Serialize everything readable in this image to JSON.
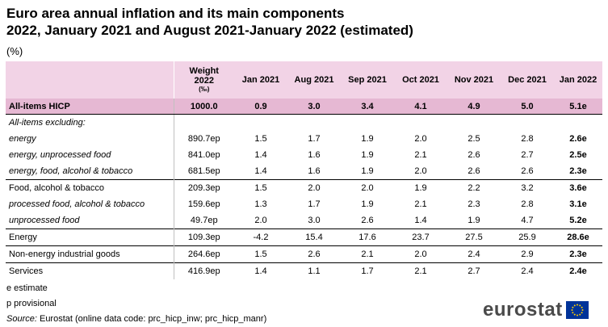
{
  "title_line1": "Euro area annual inflation and its main components",
  "title_line2": "2022, January 2021 and August 2021-January 2022 (estimated)",
  "subtitle": "(%)",
  "header": {
    "weight_line1": "Weight",
    "weight_line2": "2022",
    "weight_line3": "(‰)",
    "columns": [
      "Jan 2021",
      "Aug 2021",
      "Sep 2021",
      "Oct 2021",
      "Nov 2021",
      "Dec 2021",
      "Jan 2022"
    ]
  },
  "rows": [
    {
      "label": "All-items HICP",
      "weight": "1000.0",
      "values": [
        "0.9",
        "3.0",
        "3.4",
        "4.1",
        "4.9",
        "5.0",
        "5.1e"
      ]
    },
    {
      "label": "All-items excluding:",
      "weight": "",
      "values": [
        "",
        "",
        "",
        "",
        "",
        "",
        ""
      ]
    },
    {
      "label": "energy",
      "weight": "890.7ep",
      "values": [
        "1.5",
        "1.7",
        "1.9",
        "2.0",
        "2.5",
        "2.8",
        "2.6e"
      ]
    },
    {
      "label": "energy, unprocessed food",
      "weight": "841.0ep",
      "values": [
        "1.4",
        "1.6",
        "1.9",
        "2.1",
        "2.6",
        "2.7",
        "2.5e"
      ]
    },
    {
      "label": "energy, food, alcohol & tobacco",
      "weight": "681.5ep",
      "values": [
        "1.4",
        "1.6",
        "1.9",
        "2.0",
        "2.6",
        "2.6",
        "2.3e"
      ]
    },
    {
      "label": "Food, alcohol & tobacco",
      "weight": "209.3ep",
      "values": [
        "1.5",
        "2.0",
        "2.0",
        "1.9",
        "2.2",
        "3.2",
        "3.6e"
      ]
    },
    {
      "label": "processed food, alcohol & tobacco",
      "weight": "159.6ep",
      "values": [
        "1.3",
        "1.7",
        "1.9",
        "2.1",
        "2.3",
        "2.8",
        "3.1e"
      ]
    },
    {
      "label": "unprocessed food",
      "weight": "49.7ep",
      "values": [
        "2.0",
        "3.0",
        "2.6",
        "1.4",
        "1.9",
        "4.7",
        "5.2e"
      ]
    },
    {
      "label": "Energy",
      "weight": "109.3ep",
      "values": [
        "-4.2",
        "15.4",
        "17.6",
        "23.7",
        "27.5",
        "25.9",
        "28.6e"
      ]
    },
    {
      "label": "Non-energy industrial goods",
      "weight": "264.6ep",
      "values": [
        "1.5",
        "2.6",
        "2.1",
        "2.0",
        "2.4",
        "2.9",
        "2.3e"
      ]
    },
    {
      "label": "Services",
      "weight": "416.9ep",
      "values": [
        "1.4",
        "1.1",
        "1.7",
        "2.1",
        "2.7",
        "2.4",
        "2.4e"
      ]
    }
  ],
  "notes": {
    "estimate": "e estimate",
    "provisional": "p provisional",
    "source_label": "Source:",
    "source_text": " Eurostat (online data code: prc_hicp_inw; prc_hicp_manr)"
  },
  "logo": {
    "text": "eurostat",
    "flag_icon": "eu-flag-icon",
    "flag_color": "#003399",
    "star_color": "#ffcc00"
  }
}
